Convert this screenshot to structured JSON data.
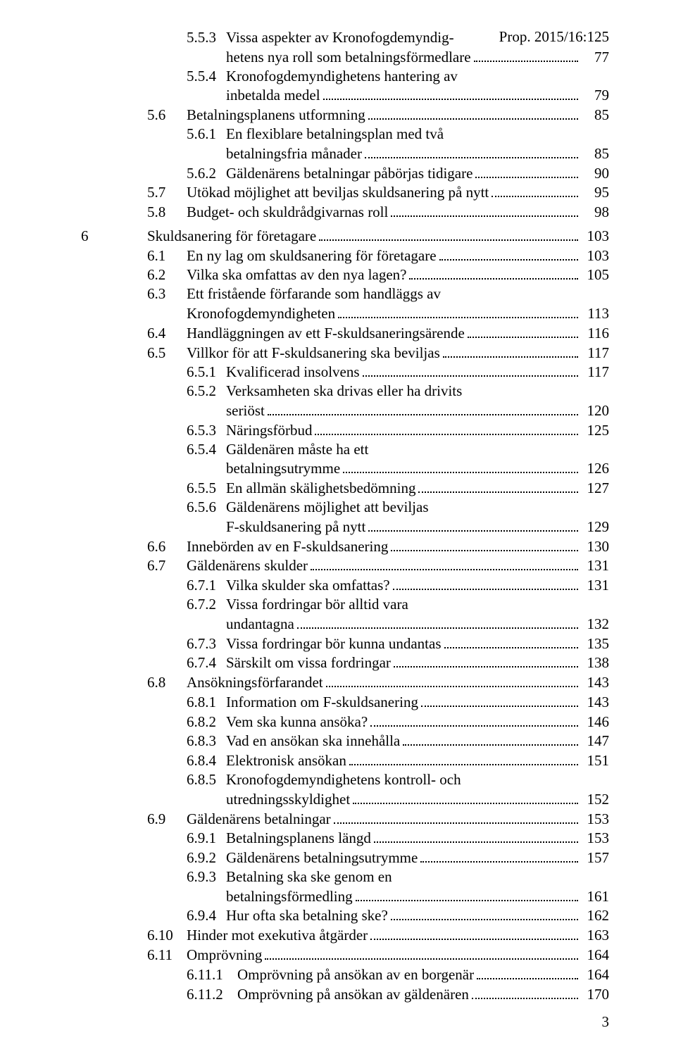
{
  "header": {
    "prop": "Prop. 2015/16:125"
  },
  "toc": [
    {
      "chapter": "",
      "num": "5.5.3",
      "indent": 2,
      "numw": "w-num-2",
      "lines": [
        "Vissa aspekter av Kronofogdemyndig-",
        "hetens nya roll som betalningsförmedlare"
      ],
      "page": "77"
    },
    {
      "chapter": "",
      "num": "5.5.4",
      "indent": 2,
      "numw": "w-num-2",
      "lines": [
        "Kronofogdemyndighetens hantering av",
        "inbetalda medel"
      ],
      "page": "79"
    },
    {
      "chapter": "",
      "num": "5.6",
      "indent": 1,
      "numw": "w-num-1",
      "lines": [
        "Betalningsplanens utformning"
      ],
      "page": "85"
    },
    {
      "chapter": "",
      "num": "5.6.1",
      "indent": 2,
      "numw": "w-num-2",
      "lines": [
        "En flexiblare betalningsplan med två",
        "betalningsfria månader"
      ],
      "page": "85"
    },
    {
      "chapter": "",
      "num": "5.6.2",
      "indent": 2,
      "numw": "w-num-2",
      "lines": [
        "Gäldenärens betalningar påbörjas tidigare"
      ],
      "page": "90"
    },
    {
      "chapter": "",
      "num": "5.7",
      "indent": 1,
      "numw": "w-num-1",
      "lines": [
        "Utökad möjlighet att beviljas skuldsanering på nytt"
      ],
      "page": "95"
    },
    {
      "chapter": "",
      "num": "5.8",
      "indent": 1,
      "numw": "w-num-1",
      "lines": [
        "Budget- och skuldrådgivarnas roll"
      ],
      "page": "98"
    },
    {
      "gap": true
    },
    {
      "chapter": "6",
      "num": "",
      "indent": 0,
      "numw": "w-num-1",
      "lines": [
        "Skuldsanering för företagare"
      ],
      "page": "103"
    },
    {
      "chapter": "",
      "num": "6.1",
      "indent": 1,
      "numw": "w-num-1",
      "lines": [
        "En ny lag om skuldsanering för företagare"
      ],
      "page": "103"
    },
    {
      "chapter": "",
      "num": "6.2",
      "indent": 1,
      "numw": "w-num-1",
      "lines": [
        "Vilka ska omfattas av den nya lagen?"
      ],
      "page": "105"
    },
    {
      "chapter": "",
      "num": "6.3",
      "indent": 1,
      "numw": "w-num-1",
      "lines": [
        "Ett fristående förfarande som handläggs av",
        "Kronofogdemyndigheten"
      ],
      "page": "113"
    },
    {
      "chapter": "",
      "num": "6.4",
      "indent": 1,
      "numw": "w-num-1",
      "lines": [
        "Handläggningen av ett F-skuldsaneringsärende"
      ],
      "page": "116"
    },
    {
      "chapter": "",
      "num": "6.5",
      "indent": 1,
      "numw": "w-num-1",
      "lines": [
        "Villkor för att F-skuldsanering ska beviljas"
      ],
      "page": "117"
    },
    {
      "chapter": "",
      "num": "6.5.1",
      "indent": 2,
      "numw": "w-num-2",
      "lines": [
        "Kvalificerad insolvens"
      ],
      "page": "117"
    },
    {
      "chapter": "",
      "num": "6.5.2",
      "indent": 2,
      "numw": "w-num-2",
      "lines": [
        "Verksamheten ska drivas eller ha drivits",
        "seriöst"
      ],
      "page": "120"
    },
    {
      "chapter": "",
      "num": "6.5.3",
      "indent": 2,
      "numw": "w-num-2",
      "lines": [
        "Näringsförbud"
      ],
      "page": "125"
    },
    {
      "chapter": "",
      "num": "6.5.4",
      "indent": 2,
      "numw": "w-num-2",
      "lines": [
        "Gäldenären måste ha ett",
        "betalningsutrymme"
      ],
      "page": "126"
    },
    {
      "chapter": "",
      "num": "6.5.5",
      "indent": 2,
      "numw": "w-num-2",
      "lines": [
        "En allmän skälighetsbedömning"
      ],
      "page": "127"
    },
    {
      "chapter": "",
      "num": "6.5.6",
      "indent": 2,
      "numw": "w-num-2",
      "lines": [
        "Gäldenärens möjlighet att beviljas",
        "F-skuldsanering på nytt"
      ],
      "page": "129"
    },
    {
      "chapter": "",
      "num": "6.6",
      "indent": 1,
      "numw": "w-num-1",
      "lines": [
        "Innebörden av en F-skuldsanering"
      ],
      "page": "130"
    },
    {
      "chapter": "",
      "num": "6.7",
      "indent": 1,
      "numw": "w-num-1",
      "lines": [
        "Gäldenärens skulder"
      ],
      "page": "131"
    },
    {
      "chapter": "",
      "num": "6.7.1",
      "indent": 2,
      "numw": "w-num-2",
      "lines": [
        "Vilka skulder ska omfattas?"
      ],
      "page": "131"
    },
    {
      "chapter": "",
      "num": "6.7.2",
      "indent": 2,
      "numw": "w-num-2",
      "lines": [
        "Vissa fordringar bör alltid vara",
        "undantagna"
      ],
      "page": "132"
    },
    {
      "chapter": "",
      "num": "6.7.3",
      "indent": 2,
      "numw": "w-num-2",
      "lines": [
        "Vissa fordringar bör kunna undantas"
      ],
      "page": "135"
    },
    {
      "chapter": "",
      "num": "6.7.4",
      "indent": 2,
      "numw": "w-num-2",
      "lines": [
        "Särskilt om vissa fordringar"
      ],
      "page": "138"
    },
    {
      "chapter": "",
      "num": "6.8",
      "indent": 1,
      "numw": "w-num-1",
      "lines": [
        "Ansökningsförfarandet"
      ],
      "page": "143"
    },
    {
      "chapter": "",
      "num": "6.8.1",
      "indent": 2,
      "numw": "w-num-2",
      "lines": [
        "Information om F-skuldsanering"
      ],
      "page": "143"
    },
    {
      "chapter": "",
      "num": "6.8.2",
      "indent": 2,
      "numw": "w-num-2",
      "lines": [
        "Vem ska kunna ansöka?"
      ],
      "page": "146"
    },
    {
      "chapter": "",
      "num": "6.8.3",
      "indent": 2,
      "numw": "w-num-2",
      "lines": [
        "Vad en ansökan ska innehålla"
      ],
      "page": "147"
    },
    {
      "chapter": "",
      "num": "6.8.4",
      "indent": 2,
      "numw": "w-num-2",
      "lines": [
        "Elektronisk ansökan"
      ],
      "page": "151"
    },
    {
      "chapter": "",
      "num": "6.8.5",
      "indent": 2,
      "numw": "w-num-2",
      "lines": [
        "Kronofogdemyndighetens kontroll- och",
        "utredningsskyldighet"
      ],
      "page": "152"
    },
    {
      "chapter": "",
      "num": "6.9",
      "indent": 1,
      "numw": "w-num-1",
      "lines": [
        "Gäldenärens betalningar"
      ],
      "page": "153"
    },
    {
      "chapter": "",
      "num": "6.9.1",
      "indent": 2,
      "numw": "w-num-2",
      "lines": [
        "Betalningsplanens längd"
      ],
      "page": "153"
    },
    {
      "chapter": "",
      "num": "6.9.2",
      "indent": 2,
      "numw": "w-num-2",
      "lines": [
        "Gäldenärens betalningsutrymme"
      ],
      "page": "157"
    },
    {
      "chapter": "",
      "num": "6.9.3",
      "indent": 2,
      "numw": "w-num-2",
      "lines": [
        "Betalning ska ske genom en",
        "betalningsförmedling"
      ],
      "page": "161"
    },
    {
      "chapter": "",
      "num": "6.9.4",
      "indent": 2,
      "numw": "w-num-2",
      "lines": [
        "Hur ofta ska betalning ske?"
      ],
      "page": "162"
    },
    {
      "chapter": "",
      "num": "6.10",
      "indent": 1,
      "numw": "w-num-1",
      "lines": [
        "Hinder mot exekutiva åtgärder"
      ],
      "page": "163"
    },
    {
      "chapter": "",
      "num": "6.11",
      "indent": 1,
      "numw": "w-num-1",
      "lines": [
        "Omprövning"
      ],
      "page": "164"
    },
    {
      "chapter": "",
      "num": "6.11.1",
      "indent": 2,
      "numw": "w-num-3",
      "lines": [
        "Omprövning på ansökan av en borgenär"
      ],
      "page": "164"
    },
    {
      "chapter": "",
      "num": "6.11.2",
      "indent": 2,
      "numw": "w-num-3",
      "lines": [
        "Omprövning på ansökan av gäldenären"
      ],
      "page": "170"
    }
  ],
  "footer": {
    "page": "3"
  }
}
